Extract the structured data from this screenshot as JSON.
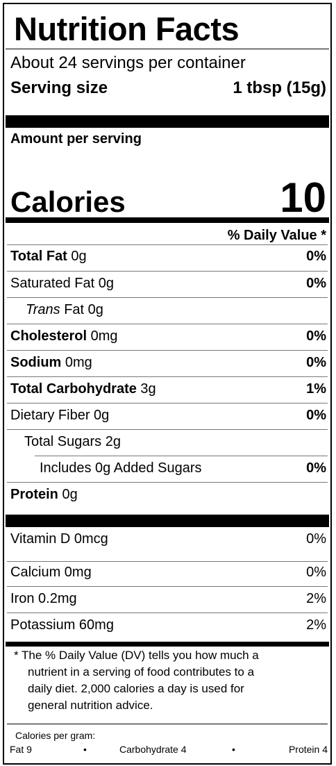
{
  "title": "Nutrition Facts",
  "servings_per_container": "About 24 servings per container",
  "serving_size_label": "Serving size",
  "serving_size_value": "1 tbsp (15g)",
  "amount_per_serving": "Amount per serving",
  "calories_label": "Calories",
  "calories_value": "10",
  "daily_value_header": "% Daily Value *",
  "nutrients": [
    {
      "name": "Total Fat",
      "amount": " 0g",
      "dv": "0%"
    },
    {
      "name": "Saturated Fat 0g",
      "amount": "",
      "dv": "0%"
    },
    {
      "name": "Trans",
      "amount": " Fat 0g",
      "dv": ""
    },
    {
      "name": "Cholesterol",
      "amount": " 0mg",
      "dv": "0%"
    },
    {
      "name": "Sodium",
      "amount": " 0mg",
      "dv": "0%"
    },
    {
      "name": "Total Carbohydrate",
      "amount": " 3g",
      "dv": "1%"
    },
    {
      "name": "Dietary Fiber 0g",
      "amount": "",
      "dv": "0%"
    },
    {
      "name": "Total Sugars 2g",
      "amount": "",
      "dv": ""
    },
    {
      "name": "Includes 0g Added Sugars",
      "amount": "",
      "dv": "0%"
    },
    {
      "name": "Protein",
      "amount": " 0g",
      "dv": ""
    }
  ],
  "vitamins": [
    {
      "name": "Vitamin D 0mcg",
      "dv": "0%"
    },
    {
      "name": "Calcium 0mg",
      "dv": "0%"
    },
    {
      "name": "Iron 0.2mg",
      "dv": "2%"
    },
    {
      "name": "Potassium 60mg",
      "dv": "2%"
    }
  ],
  "footnote": {
    "line1": "* The % Daily Value (DV) tells you how much a",
    "line2": "nutrient in a serving of food contributes to a",
    "line3": "daily diet. 2,000 calories a day is used for",
    "line4": "general nutrition advice."
  },
  "calories_per_gram": {
    "label": "Calories per gram:",
    "fat": "Fat 9",
    "bullet": "•",
    "carbohydrate": "Carbohydrate 4",
    "protein": "Protein 4"
  }
}
